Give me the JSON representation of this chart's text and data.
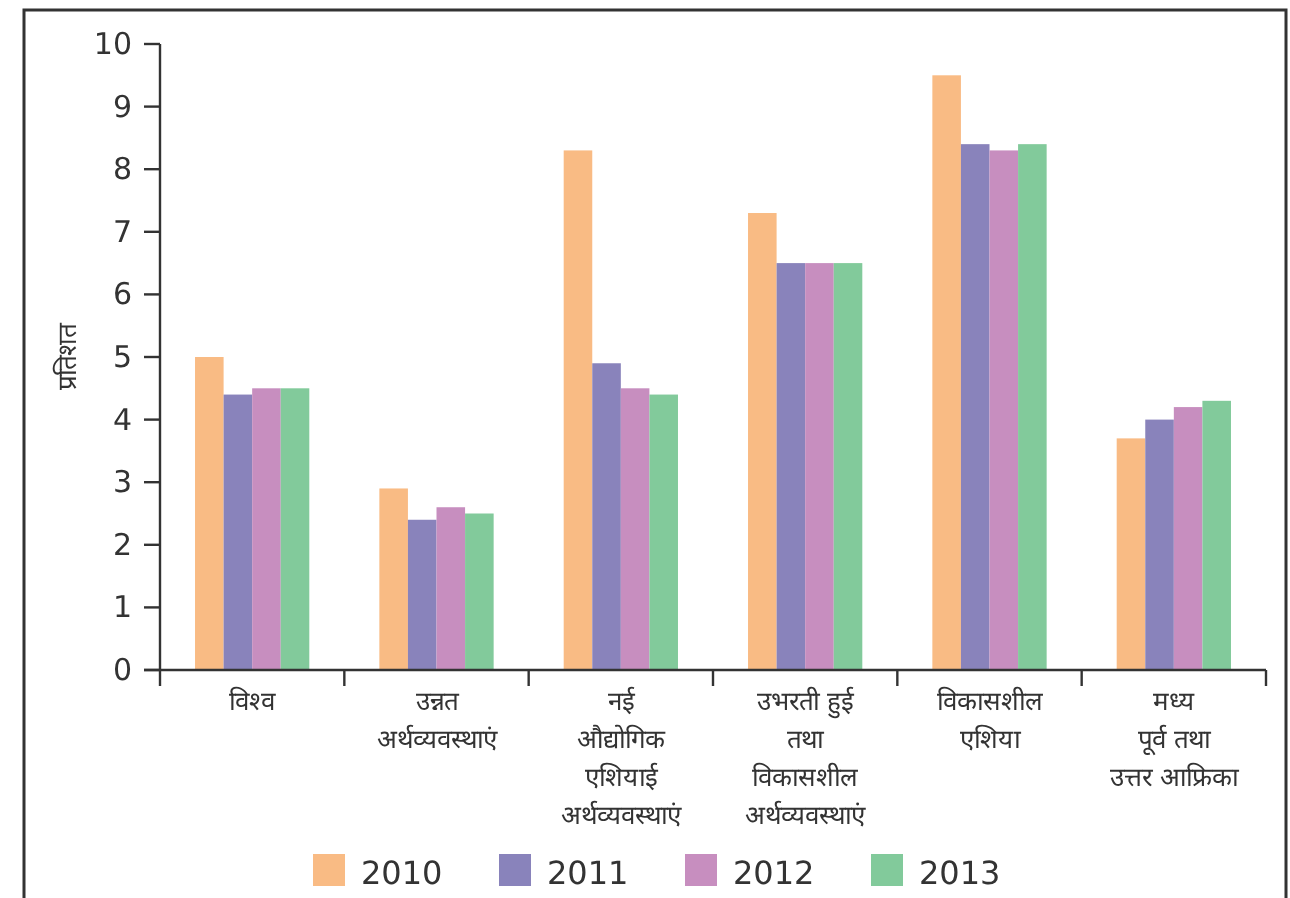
{
  "chart_data": {
    "type": "bar",
    "ylabel": "प्रतिशत",
    "categories": [
      "विश्व",
      "उन्नत\nअर्थव्यवस्थाएं",
      "नई\nऔद्योगिक\nएशियाई\nअर्थव्यवस्थाएं",
      "उभरती हुई\nतथा\nविकासशील\nअर्थव्यवस्थाएं",
      "विकासशील\nएशिया",
      "मध्य\nपूर्व तथा\nउत्तर आफ्रिका"
    ],
    "series": [
      {
        "name": "2010",
        "color": "#f9bb84",
        "values": [
          5.0,
          2.9,
          8.3,
          7.3,
          9.5,
          3.7
        ]
      },
      {
        "name": "2011",
        "color": "#8983bb",
        "values": [
          4.4,
          2.4,
          4.9,
          6.5,
          8.4,
          4.0
        ]
      },
      {
        "name": "2012",
        "color": "#c78ebf",
        "values": [
          4.5,
          2.6,
          4.5,
          6.5,
          8.3,
          4.2
        ]
      },
      {
        "name": "2013",
        "color": "#82ca9b",
        "values": [
          4.5,
          2.5,
          4.4,
          6.5,
          8.4,
          4.3
        ]
      }
    ],
    "ylim": [
      0,
      10
    ],
    "yticks": [
      0,
      1,
      2,
      3,
      4,
      5,
      6,
      7,
      8,
      9,
      10
    ],
    "legend": "bottom"
  }
}
